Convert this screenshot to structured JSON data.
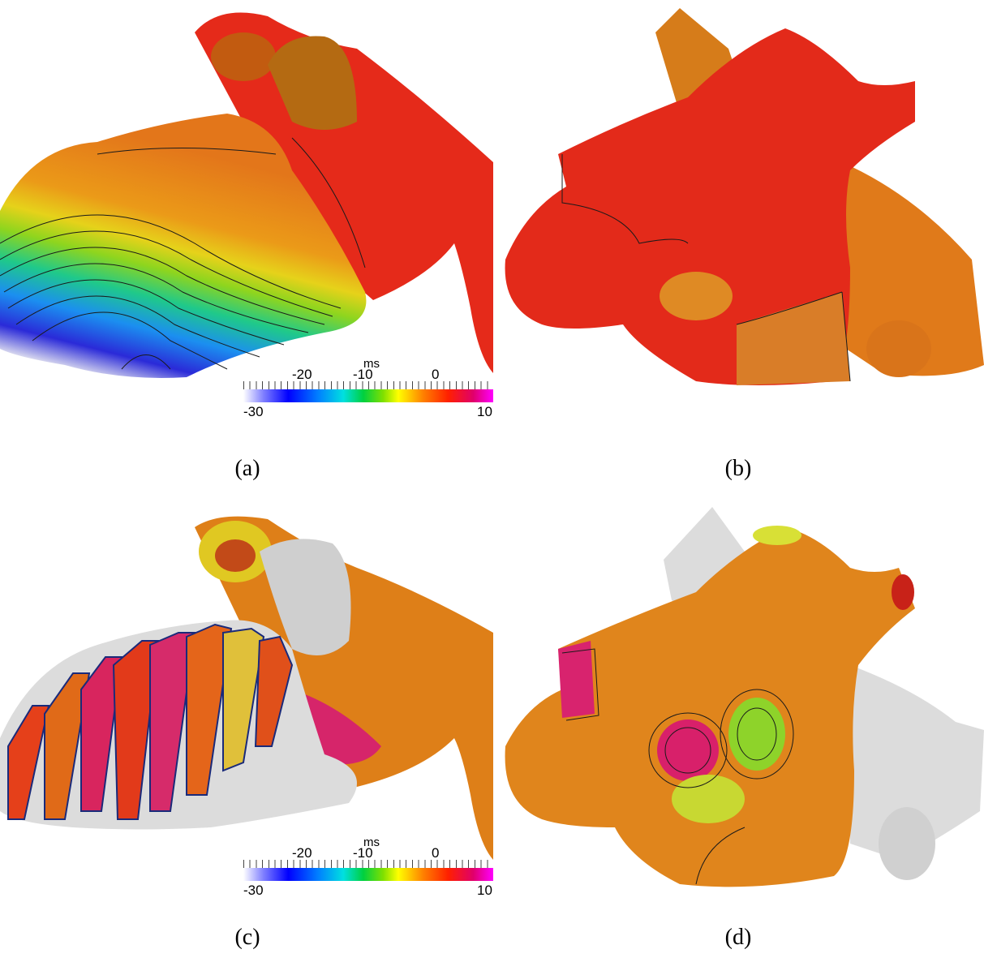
{
  "panels": [
    {
      "caption": "(a)",
      "colorbar": {
        "units": "ms",
        "top_ticks": [
          "-20",
          "-10",
          "0"
        ],
        "bottom_ticks": [
          "-30",
          "10"
        ]
      }
    },
    {
      "caption": "(b)"
    },
    {
      "caption": "(c)",
      "colorbar": {
        "units": "ms",
        "top_ticks": [
          "-20",
          "-10",
          "0"
        ],
        "bottom_ticks": [
          "-30",
          "10"
        ]
      }
    },
    {
      "caption": "(d)"
    }
  ],
  "colors": {
    "red": "#e8281a",
    "orange": "#e27a16",
    "white_surface": "#dcdcdc",
    "magenta": "#d81a7a",
    "blue": "#1a1acc"
  }
}
